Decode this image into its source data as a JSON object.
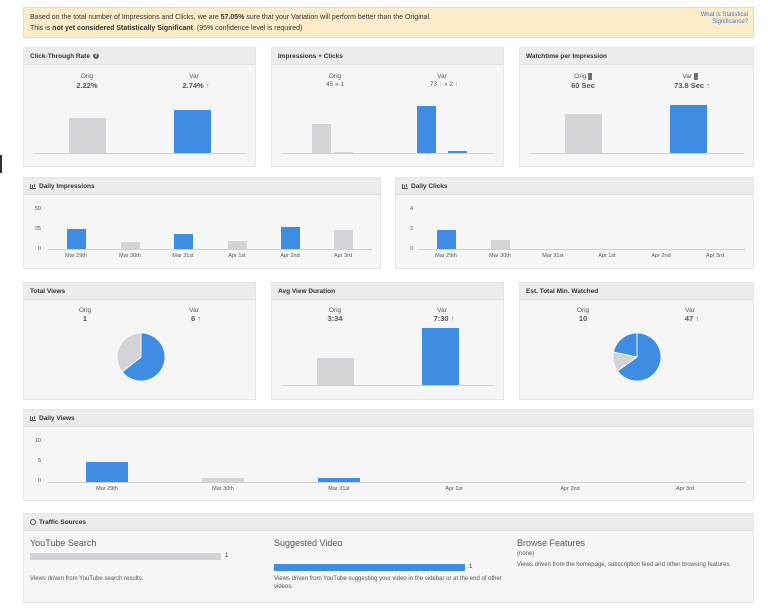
{
  "banner": {
    "line1_pre": "Based on the total number of Impressions and Clicks, we are ",
    "line1_pct": "57.05%",
    "line1_post": " sure that your Variation will perform better than the Original.",
    "line2_pre": "This is ",
    "line2_bold": "not yet considered Statistically Significant",
    "line2_post": ". (95% confidence level is required)",
    "help_link": "What is Statistical Significance?"
  },
  "ctr": {
    "title": "Click-Through Rate",
    "orig_label": "Orig",
    "orig_value": "2.22%",
    "var_label": "Var",
    "var_value": "2.74%",
    "orig": 2.22,
    "var": 2.74
  },
  "impclicks": {
    "title": "Impressions + Clicks",
    "orig_label": "Orig",
    "orig_imp": "45",
    "orig_sep": "»",
    "orig_clicks": "1",
    "var_label": "Var",
    "var_imp": "73",
    "var_sep": "»",
    "var_clicks": "2",
    "orig_impressions": 45,
    "orig_click": 1,
    "var_impressions": 73,
    "var_click": 2
  },
  "watch": {
    "title": "Watchtime per Impression",
    "orig_label": "Orig",
    "orig_value": "60 Sec",
    "var_label": "Var",
    "var_value": "73.8 Sec",
    "orig": 60,
    "var": 73.8
  },
  "daily_impressions": {
    "title": "Daily Impressions",
    "yticks": [
      "50",
      "25",
      "0"
    ],
    "categories": [
      "Mar 29th",
      "Mar 30th",
      "Mar 31st",
      "Apr 1st",
      "Apr 2nd",
      "Apr 3rd"
    ]
  },
  "daily_clicks": {
    "title": "Daily Clicks",
    "yticks": [
      "4",
      "2",
      "0"
    ],
    "categories": [
      "Mar 29th",
      "Mar 30th",
      "Mar 31st",
      "Apr 1st",
      "Apr 2nd",
      "Apr 3rd"
    ]
  },
  "total_views": {
    "title": "Total Views",
    "orig_label": "Orig",
    "orig_value": "1",
    "var_label": "Var",
    "var_value": "6"
  },
  "avg_view": {
    "title": "Avg View Duration",
    "orig_label": "Orig",
    "orig_value": "3:34",
    "var_label": "Var",
    "var_value": "7:30",
    "orig_seconds": 214,
    "var_seconds": 450
  },
  "est_total": {
    "title": "Est. Total Min. Watched",
    "orig_label": "Orig",
    "orig_value": "10",
    "var_label": "Var",
    "var_value": "47"
  },
  "daily_views": {
    "title": "Daily Views",
    "yticks": [
      "10",
      "5",
      "0"
    ],
    "categories": [
      "Mar 29th",
      "Mar 30th",
      "Mar 31st",
      "Apr 1st",
      "Apr 2nd",
      "Apr 3rd"
    ]
  },
  "traffic": {
    "title": "Traffic Sources",
    "sources": [
      {
        "name": "YouTube Search",
        "count": "1",
        "desc": "Views driven from YouTube search results."
      },
      {
        "name": "Suggested Video",
        "count": "1",
        "desc": "Views driven from YouTube suggesting your video in the sidebar or at the end of other videos."
      },
      {
        "name": "Browse Features",
        "none": "(none)",
        "desc": "Views driven from the homepage, subscription feed and other browsing features."
      }
    ]
  },
  "colors": {
    "orig": "#d4d3d8",
    "var": "#3f8de2",
    "up_arrow": "#3cb54a",
    "banner_bg": "#fcecc9",
    "link": "#3b7dd8"
  },
  "chart_data": [
    {
      "type": "bar",
      "title": "Click-Through Rate",
      "categories": [
        "Orig",
        "Var"
      ],
      "values": [
        2.22,
        2.74
      ]
    },
    {
      "type": "bar",
      "title": "Impressions + Clicks",
      "categories": [
        "Orig",
        "Var"
      ],
      "series": [
        {
          "name": "Impressions",
          "values": [
            45,
            73
          ]
        },
        {
          "name": "Clicks",
          "values": [
            1,
            2
          ]
        }
      ]
    },
    {
      "type": "bar",
      "title": "Watchtime per Impression",
      "categories": [
        "Orig",
        "Var"
      ],
      "values": [
        60,
        73.8
      ]
    },
    {
      "type": "bar",
      "title": "Daily Impressions",
      "categories": [
        "Mar 29th",
        "Mar 30th",
        "Mar 31st",
        "Apr 1st",
        "Apr 2nd",
        "Apr 3rd"
      ],
      "series": [
        {
          "values": [
            25,
            0,
            18,
            0,
            27,
            0
          ]
        },
        {
          "values": [
            0,
            9,
            0,
            10,
            0,
            23
          ]
        }
      ],
      "ylim": [
        0,
        50
      ]
    },
    {
      "type": "bar",
      "title": "Daily Clicks",
      "categories": [
        "Mar 29th",
        "Mar 30th",
        "Mar 31st",
        "Apr 1st",
        "Apr 2nd",
        "Apr 3rd"
      ],
      "series": [
        {
          "values": [
            2,
            0,
            0,
            0,
            0,
            0
          ]
        },
        {
          "values": [
            0,
            1,
            0,
            0,
            0,
            0
          ]
        }
      ],
      "ylim": [
        0,
        4
      ]
    },
    {
      "type": "pie",
      "title": "Total Views",
      "categories": [
        "Orig",
        "Var"
      ],
      "values": [
        1,
        6
      ]
    },
    {
      "type": "bar",
      "title": "Avg View Duration",
      "categories": [
        "Orig",
        "Var"
      ],
      "values": [
        214,
        450
      ]
    },
    {
      "type": "pie",
      "title": "Est. Total Min. Watched",
      "categories": [
        "Orig",
        "Var"
      ],
      "values": [
        10,
        47
      ]
    },
    {
      "type": "bar",
      "title": "Daily Views",
      "categories": [
        "Mar 29th",
        "Mar 30th",
        "Mar 31st",
        "Apr 1st",
        "Apr 2nd",
        "Apr 3rd"
      ],
      "series": [
        {
          "values": [
            5,
            0,
            1,
            0,
            0,
            0
          ]
        },
        {
          "values": [
            0,
            1,
            0,
            0,
            0,
            0
          ]
        }
      ],
      "ylim": [
        0,
        10
      ]
    }
  ]
}
